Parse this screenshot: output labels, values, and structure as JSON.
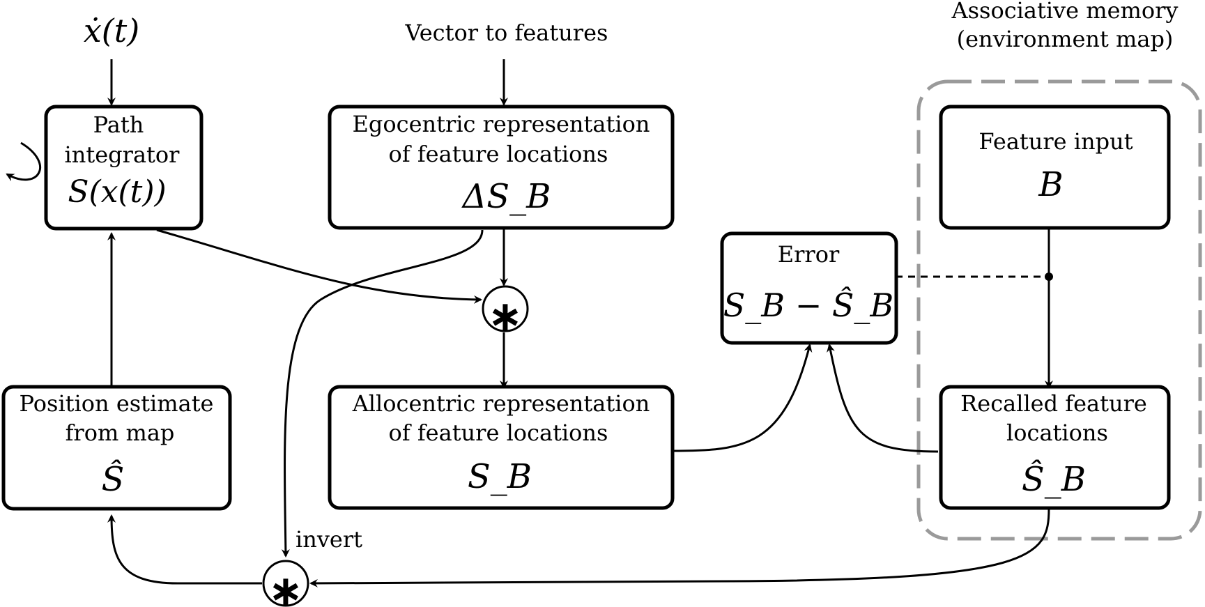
{
  "inputs": {
    "velocity": "ẋ(t)",
    "vector_to_features": "Vector to features"
  },
  "group": {
    "title_line1": "Associative memory",
    "title_line2": "(environment map)"
  },
  "boxes": {
    "path_integrator": {
      "line1": "Path",
      "line2": "integrator",
      "math": "S(x(t))"
    },
    "egocentric": {
      "line1": "Egocentric representation",
      "line2": "of feature locations",
      "math": "ΔS_B"
    },
    "feature_input": {
      "line1": "Feature input",
      "math": "B"
    },
    "error": {
      "line1": "Error",
      "math": "S_B − Ŝ_B"
    },
    "position_estimate": {
      "line1": "Position estimate",
      "line2": "from map",
      "math": "Ŝ"
    },
    "allocentric": {
      "line1": "Allocentric representation",
      "line2": "of feature locations",
      "math": "S_B"
    },
    "recalled": {
      "line1": "Recalled feature",
      "line2": "locations",
      "math": "Ŝ_B"
    }
  },
  "operators": {
    "convolve_top": "∗",
    "convolve_bottom": "∗"
  },
  "edge_labels": {
    "invert": "invert"
  }
}
